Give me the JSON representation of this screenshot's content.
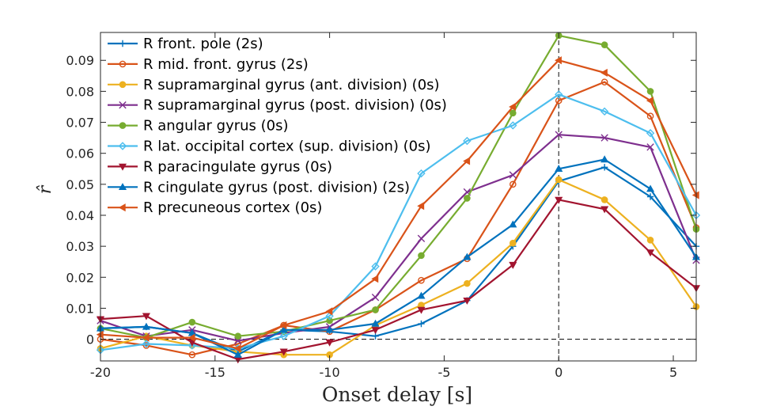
{
  "chart_data": {
    "type": "line",
    "title": "",
    "xlabel": "Onset delay [s]",
    "ylabel": "r̂",
    "xlim": [
      -20,
      6
    ],
    "ylim": [
      -0.007,
      0.099
    ],
    "x_ticks": [
      -20,
      -15,
      -10,
      -5,
      0,
      5
    ],
    "x_tick_labels": [
      "-20",
      "-15",
      "-10",
      "-5",
      "0",
      "5"
    ],
    "y_ticks": [
      0,
      0.01,
      0.02,
      0.03,
      0.04,
      0.05,
      0.06,
      0.07,
      0.08,
      0.09
    ],
    "y_tick_labels": [
      "0",
      "0.01",
      "0.02",
      "0.03",
      "0.04",
      "0.05",
      "0.06",
      "0.07",
      "0.08",
      "0.09"
    ],
    "legend_position": "top-left",
    "reference_lines": {
      "x": 0,
      "y": 0,
      "style": "dashed"
    },
    "x": [
      -20,
      -18,
      -16,
      -14,
      -12,
      -10,
      -8,
      -6,
      -4,
      -2,
      0,
      2,
      4,
      6
    ],
    "series": [
      {
        "name": "R front. pole (2s)",
        "color": "#0072BD",
        "marker": "plus",
        "values": [
          0.0035,
          0.004,
          0.002,
          -0.004,
          0.003,
          0.0025,
          0.001,
          0.005,
          0.0125,
          0.03,
          0.051,
          0.0555,
          0.046,
          0.03
        ]
      },
      {
        "name": "R mid. front. gyrus (2s)",
        "color": "#D95319",
        "marker": "circle",
        "values": [
          0.0,
          -0.002,
          -0.005,
          -0.0015,
          0.0045,
          0.0025,
          0.0095,
          0.019,
          0.026,
          0.05,
          0.077,
          0.083,
          0.072,
          0.036
        ]
      },
      {
        "name": "R supramarginal gyrus (ant. division) (0s)",
        "color": "#EDB120",
        "marker": "dot",
        "values": [
          -0.003,
          0.001,
          -0.002,
          -0.004,
          -0.005,
          -0.005,
          0.0045,
          0.011,
          0.018,
          0.031,
          0.0515,
          0.045,
          0.032,
          0.0105
        ]
      },
      {
        "name": "R supramarginal gyrus (post. division) (0s)",
        "color": "#7E2F8E",
        "marker": "x",
        "values": [
          0.006,
          0.001,
          0.003,
          -0.0005,
          0.002,
          0.004,
          0.0135,
          0.0325,
          0.0475,
          0.053,
          0.066,
          0.065,
          0.062,
          0.0255
        ]
      },
      {
        "name": "R angular gyrus (0s)",
        "color": "#77AC30",
        "marker": "dot",
        "values": [
          0.0035,
          0.0005,
          0.0055,
          0.001,
          0.0025,
          0.006,
          0.0095,
          0.027,
          0.0455,
          0.073,
          0.098,
          0.095,
          0.08,
          0.0355
        ]
      },
      {
        "name": "R lat. occipital cortex (sup. division) (0s)",
        "color": "#4DBEEE",
        "marker": "diamond",
        "values": [
          -0.0035,
          -0.0015,
          -0.002,
          -0.003,
          0.001,
          0.0075,
          0.0235,
          0.0535,
          0.064,
          0.069,
          0.079,
          0.0735,
          0.0665,
          0.04
        ]
      },
      {
        "name": "R paracingulate gyrus (0s)",
        "color": "#A2142F",
        "marker": "triangle-down",
        "values": [
          0.0065,
          0.0075,
          -0.001,
          -0.0065,
          -0.004,
          -0.001,
          0.003,
          0.0095,
          0.0125,
          0.024,
          0.045,
          0.042,
          0.028,
          0.0165
        ]
      },
      {
        "name": "R cingulate gyrus (post. division) (2s)",
        "color": "#0072BD",
        "marker": "triangle-up",
        "values": [
          0.0035,
          0.004,
          0.002,
          -0.005,
          0.003,
          0.003,
          0.005,
          0.014,
          0.0265,
          0.037,
          0.055,
          0.058,
          0.0485,
          0.0265
        ]
      },
      {
        "name": "R precuneous cortex (0s)",
        "color": "#D95319",
        "marker": "triangle-left",
        "values": [
          0.0015,
          0.0005,
          0.0005,
          -0.003,
          0.0045,
          0.009,
          0.0195,
          0.043,
          0.0575,
          0.075,
          0.09,
          0.086,
          0.077,
          0.0465
        ]
      }
    ]
  }
}
